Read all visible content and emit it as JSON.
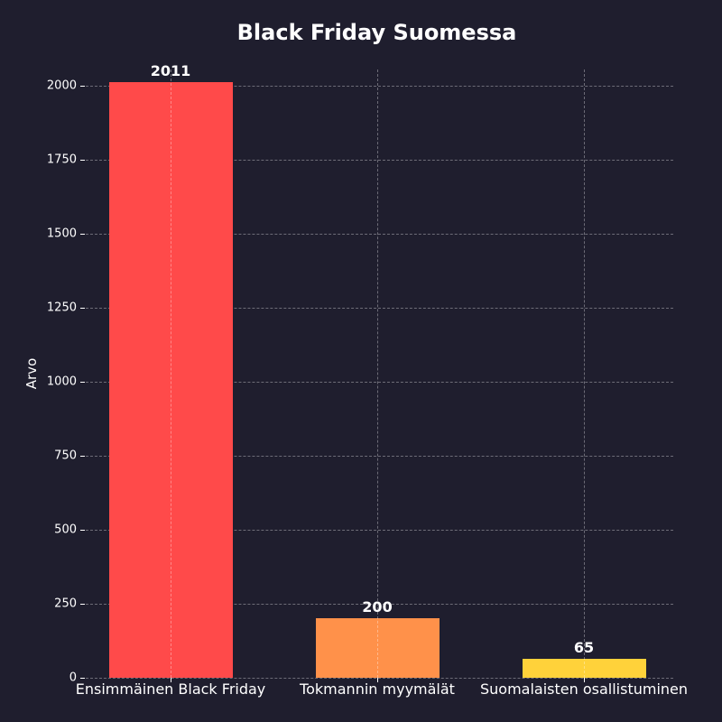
{
  "chart_data": {
    "type": "bar",
    "title": "Black Friday Suomessa",
    "xlabel": "",
    "ylabel": "Arvo",
    "categories": [
      "Ensimmäinen Black Friday",
      "Tokmannin myymälät",
      "Suomalaisten osallistuminen"
    ],
    "values": [
      2011,
      200,
      65
    ],
    "value_labels": [
      "2011",
      "200",
      "65"
    ],
    "colors": [
      "#ff4a4a",
      "#ff914a",
      "#ffd23a"
    ],
    "ylim": [
      0,
      2055
    ],
    "yticks": [
      0,
      250,
      500,
      750,
      1000,
      1250,
      1500,
      1750,
      2000
    ],
    "grid": true,
    "legend": null
  },
  "header": {
    "title": "Black Friday Suomessa"
  },
  "axis": {
    "ylabel": "Arvo",
    "yticks": [
      "0",
      "250",
      "500",
      "750",
      "1000",
      "1250",
      "1500",
      "1750",
      "2000"
    ]
  },
  "bars": [
    {
      "label": "Ensimmäinen Black Friday",
      "value_label": "2011"
    },
    {
      "label": "Tokmannin myymälät",
      "value_label": "200"
    },
    {
      "label": "Suomalaisten osallistuminen",
      "value_label": "65"
    }
  ]
}
